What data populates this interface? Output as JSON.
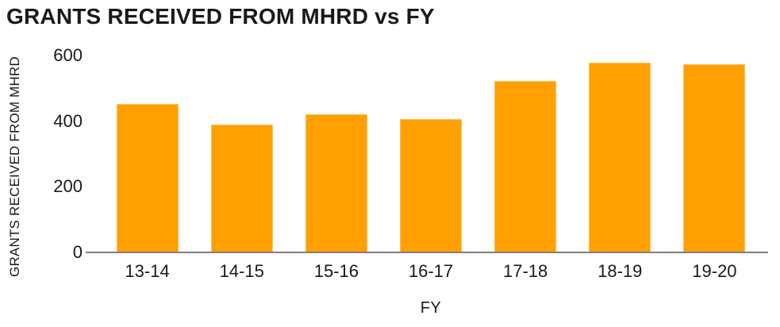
{
  "title": "GRANTS RECEIVED FROM MHRD vs FY",
  "colors": {
    "bar": "#FFA000",
    "bar_edge": "#FFBE5C",
    "axis_line": "#7F7F7F",
    "text": "#1A1A1A",
    "background": "#FFFFFF"
  },
  "chart_data": {
    "type": "bar",
    "title": "GRANTS RECEIVED FROM MHRD vs FY",
    "categories": [
      "13-14",
      "14-15",
      "15-16",
      "16-17",
      "17-18",
      "18-19",
      "19-20"
    ],
    "values": [
      452,
      389,
      422,
      406,
      523,
      579,
      575
    ],
    "xlabel": "FY",
    "ylabel": "GRANTS RECEIVED FROM MHRD",
    "ylim": [
      0,
      625
    ],
    "yticks": [
      0,
      200,
      400,
      600
    ],
    "grid": false,
    "legend": false,
    "bar_color": "#FFA000"
  }
}
